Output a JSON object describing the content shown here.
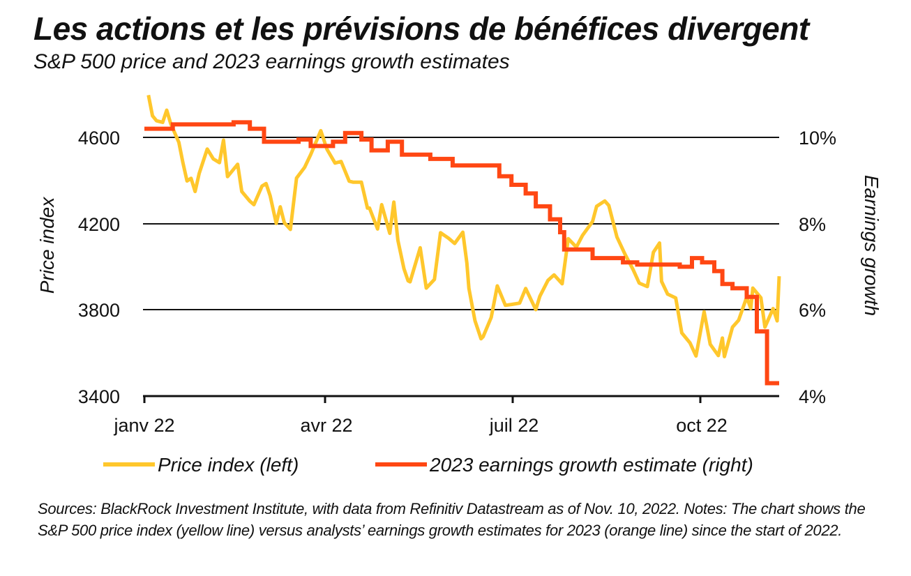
{
  "header": {
    "title": "Les actions et les prévisions de bénéfices divergent",
    "subtitle": "S&P 500 price and 2023 earnings growth estimates"
  },
  "chart_data": {
    "type": "line",
    "x_axis": {
      "ticks": [
        "janv 22",
        "avr 22",
        "juil 22",
        "oct 22"
      ],
      "range": [
        "2022-01-01",
        "2022-11-10"
      ]
    },
    "y_left": {
      "label": "Price index",
      "ticks": [
        "3400",
        "3800",
        "4200",
        "4600"
      ],
      "range": [
        3400,
        4600
      ],
      "gridlines": [
        3800,
        4200,
        4600
      ]
    },
    "y_right": {
      "label": "Earnings growth",
      "ticks": [
        "4%",
        "6%",
        "8%",
        "10%"
      ],
      "range": [
        4,
        10
      ]
    },
    "grid": true,
    "legend_position": "bottom",
    "series": [
      {
        "name": "Price index (left)",
        "axis": "left",
        "color": "#FFC72C",
        "points": [
          [
            "2022-01-03",
            4796
          ],
          [
            "2022-01-05",
            4700
          ],
          [
            "2022-01-07",
            4677
          ],
          [
            "2022-01-10",
            4670
          ],
          [
            "2022-01-12",
            4726
          ],
          [
            "2022-01-14",
            4663
          ],
          [
            "2022-01-18",
            4577
          ],
          [
            "2022-01-20",
            4483
          ],
          [
            "2022-01-22",
            4398
          ],
          [
            "2022-01-24",
            4410
          ],
          [
            "2022-01-26",
            4349
          ],
          [
            "2022-01-28",
            4432
          ],
          [
            "2022-02-01",
            4546
          ],
          [
            "2022-02-04",
            4500
          ],
          [
            "2022-02-07",
            4483
          ],
          [
            "2022-02-09",
            4587
          ],
          [
            "2022-02-11",
            4418
          ],
          [
            "2022-02-16",
            4475
          ],
          [
            "2022-02-18",
            4349
          ],
          [
            "2022-02-22",
            4304
          ],
          [
            "2022-02-24",
            4288
          ],
          [
            "2022-02-28",
            4374
          ],
          [
            "2022-03-02",
            4386
          ],
          [
            "2022-03-04",
            4329
          ],
          [
            "2022-03-07",
            4201
          ],
          [
            "2022-03-09",
            4278
          ],
          [
            "2022-03-11",
            4204
          ],
          [
            "2022-03-14",
            4173
          ],
          [
            "2022-03-17",
            4411
          ],
          [
            "2022-03-21",
            4461
          ],
          [
            "2022-03-24",
            4520
          ],
          [
            "2022-03-29",
            4631
          ],
          [
            "2022-04-01",
            4545
          ],
          [
            "2022-04-05",
            4481
          ],
          [
            "2022-04-08",
            4488
          ],
          [
            "2022-04-12",
            4397
          ],
          [
            "2022-04-14",
            4392
          ],
          [
            "2022-04-18",
            4392
          ],
          [
            "2022-04-21",
            4272
          ],
          [
            "2022-04-22",
            4272
          ],
          [
            "2022-04-26",
            4175
          ],
          [
            "2022-04-28",
            4288
          ],
          [
            "2022-05-02",
            4155
          ],
          [
            "2022-05-04",
            4300
          ],
          [
            "2022-05-06",
            4123
          ],
          [
            "2022-05-09",
            3991
          ],
          [
            "2022-05-11",
            3935
          ],
          [
            "2022-05-12",
            3930
          ],
          [
            "2022-05-17",
            4088
          ],
          [
            "2022-05-20",
            3901
          ],
          [
            "2022-05-24",
            3941
          ],
          [
            "2022-05-27",
            4158
          ],
          [
            "2022-05-31",
            4132
          ],
          [
            "2022-06-03",
            4108
          ],
          [
            "2022-06-07",
            4160
          ],
          [
            "2022-06-09",
            4017
          ],
          [
            "2022-06-10",
            3900
          ],
          [
            "2022-06-13",
            3750
          ],
          [
            "2022-06-16",
            3666
          ],
          [
            "2022-06-17",
            3675
          ],
          [
            "2022-06-21",
            3765
          ],
          [
            "2022-06-24",
            3911
          ],
          [
            "2022-06-28",
            3821
          ],
          [
            "2022-07-01",
            3825
          ],
          [
            "2022-07-05",
            3831
          ],
          [
            "2022-07-08",
            3899
          ],
          [
            "2022-07-13",
            3801
          ],
          [
            "2022-07-15",
            3863
          ],
          [
            "2022-07-19",
            3937
          ],
          [
            "2022-07-22",
            3962
          ],
          [
            "2022-07-26",
            3921
          ],
          [
            "2022-07-29",
            4130
          ],
          [
            "2022-08-02",
            4091
          ],
          [
            "2022-08-05",
            4145
          ],
          [
            "2022-08-10",
            4210
          ],
          [
            "2022-08-12",
            4280
          ],
          [
            "2022-08-16",
            4305
          ],
          [
            "2022-08-18",
            4284
          ],
          [
            "2022-08-22",
            4138
          ],
          [
            "2022-08-26",
            4058
          ],
          [
            "2022-08-30",
            3986
          ],
          [
            "2022-09-02",
            3924
          ],
          [
            "2022-09-06",
            3908
          ],
          [
            "2022-09-09",
            4067
          ],
          [
            "2022-09-12",
            4110
          ],
          [
            "2022-09-13",
            3932
          ],
          [
            "2022-09-16",
            3873
          ],
          [
            "2022-09-20",
            3855
          ],
          [
            "2022-09-23",
            3693
          ],
          [
            "2022-09-27",
            3647
          ],
          [
            "2022-09-30",
            3586
          ],
          [
            "2022-10-04",
            3791
          ],
          [
            "2022-10-07",
            3640
          ],
          [
            "2022-10-11",
            3588
          ],
          [
            "2022-10-13",
            3669
          ],
          [
            "2022-10-14",
            3583
          ],
          [
            "2022-10-18",
            3720
          ],
          [
            "2022-10-21",
            3752
          ],
          [
            "2022-10-25",
            3859
          ],
          [
            "2022-10-27",
            3807
          ],
          [
            "2022-10-28",
            3901
          ],
          [
            "2022-11-01",
            3856
          ],
          [
            "2022-11-03",
            3720
          ],
          [
            "2022-11-07",
            3806
          ],
          [
            "2022-11-09",
            3749
          ],
          [
            "2022-11-10",
            3956
          ]
        ]
      },
      {
        "name": "2023 earnings growth estimate (right)",
        "axis": "right",
        "color": "#FF4713",
        "points": [
          [
            "2022-01-01",
            10.2
          ],
          [
            "2022-01-15",
            10.2
          ],
          [
            "2022-01-15",
            10.3
          ],
          [
            "2022-02-14",
            10.3
          ],
          [
            "2022-02-14",
            10.35
          ],
          [
            "2022-02-22",
            10.35
          ],
          [
            "2022-02-22",
            10.2
          ],
          [
            "2022-03-01",
            10.2
          ],
          [
            "2022-03-01",
            9.9
          ],
          [
            "2022-03-18",
            9.9
          ],
          [
            "2022-03-18",
            9.95
          ],
          [
            "2022-03-24",
            9.95
          ],
          [
            "2022-03-24",
            9.8
          ],
          [
            "2022-04-04",
            9.8
          ],
          [
            "2022-04-04",
            9.9
          ],
          [
            "2022-04-10",
            9.9
          ],
          [
            "2022-04-10",
            10.1
          ],
          [
            "2022-04-18",
            10.1
          ],
          [
            "2022-04-18",
            9.95
          ],
          [
            "2022-04-23",
            9.95
          ],
          [
            "2022-04-23",
            9.7
          ],
          [
            "2022-05-01",
            9.7
          ],
          [
            "2022-05-01",
            9.9
          ],
          [
            "2022-05-08",
            9.9
          ],
          [
            "2022-05-08",
            9.6
          ],
          [
            "2022-05-22",
            9.6
          ],
          [
            "2022-05-22",
            9.5
          ],
          [
            "2022-06-02",
            9.5
          ],
          [
            "2022-06-02",
            9.35
          ],
          [
            "2022-06-25",
            9.35
          ],
          [
            "2022-06-25",
            9.1
          ],
          [
            "2022-07-01",
            9.1
          ],
          [
            "2022-07-01",
            8.9
          ],
          [
            "2022-07-08",
            8.9
          ],
          [
            "2022-07-08",
            8.7
          ],
          [
            "2022-07-13",
            8.7
          ],
          [
            "2022-07-13",
            8.4
          ],
          [
            "2022-07-20",
            8.4
          ],
          [
            "2022-07-20",
            8.1
          ],
          [
            "2022-07-25",
            8.1
          ],
          [
            "2022-07-25",
            7.8
          ],
          [
            "2022-07-27",
            7.8
          ],
          [
            "2022-07-27",
            7.4
          ],
          [
            "2022-08-10",
            7.4
          ],
          [
            "2022-08-10",
            7.2
          ],
          [
            "2022-08-25",
            7.2
          ],
          [
            "2022-08-25",
            7.1
          ],
          [
            "2022-09-01",
            7.1
          ],
          [
            "2022-09-01",
            7.05
          ],
          [
            "2022-09-22",
            7.05
          ],
          [
            "2022-09-22",
            7.0
          ],
          [
            "2022-09-28",
            7.0
          ],
          [
            "2022-09-28",
            7.2
          ],
          [
            "2022-10-03",
            7.2
          ],
          [
            "2022-10-03",
            7.1
          ],
          [
            "2022-10-09",
            7.1
          ],
          [
            "2022-10-09",
            6.9
          ],
          [
            "2022-10-13",
            6.9
          ],
          [
            "2022-10-13",
            6.6
          ],
          [
            "2022-10-18",
            6.6
          ],
          [
            "2022-10-18",
            6.5
          ],
          [
            "2022-10-25",
            6.5
          ],
          [
            "2022-10-25",
            6.3
          ],
          [
            "2022-10-30",
            6.3
          ],
          [
            "2022-10-30",
            5.5
          ],
          [
            "2022-11-04",
            5.5
          ],
          [
            "2022-11-04",
            4.3
          ],
          [
            "2022-11-10",
            4.3
          ]
        ]
      }
    ]
  },
  "legend": {
    "price_label": "Price index (left)",
    "earnings_label": "2023 earnings growth estimate (right)"
  },
  "footer": {
    "sources": "Sources: BlackRock Investment Institute, with data from Refinitiv Datastream as of Nov. 10, 2022.  Notes: The chart shows the S&P 500 price index (yellow line) versus analysts’ earnings growth estimates for 2023 (orange line) since the start of 2022."
  }
}
